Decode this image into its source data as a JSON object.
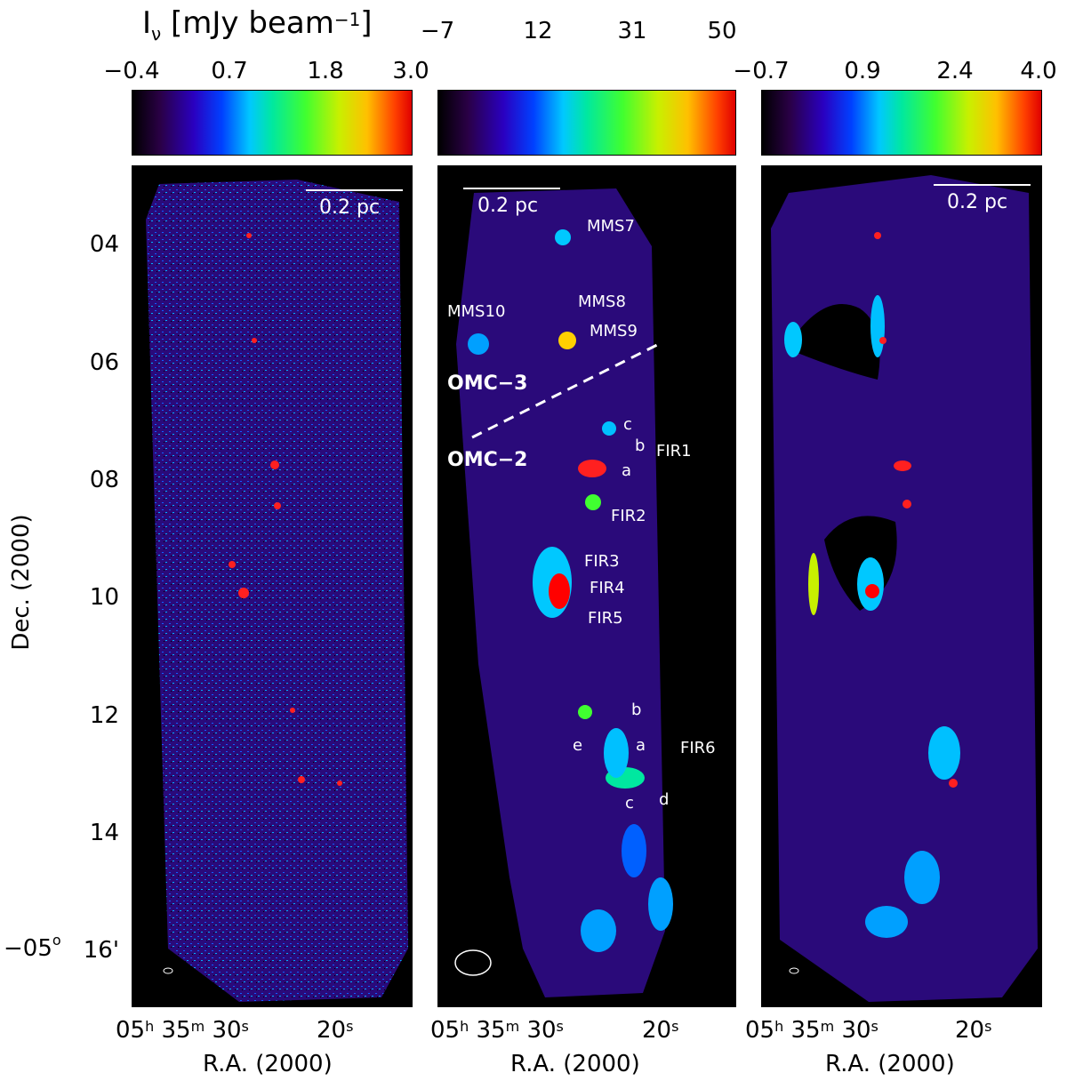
{
  "colorbar_label": "I",
  "colorbar_label_sub": "ν",
  "colorbar_label_unit": "[mJy beam",
  "colorbar_label_exp": "−1",
  "colorbar_label_close": "]",
  "colorbars": [
    {
      "ticks": [
        "−0.4",
        "0.7",
        "1.8",
        "3.0"
      ]
    },
    {
      "ticks": [
        "−7",
        "12",
        "31",
        "50"
      ]
    },
    {
      "ticks": [
        "−0.7",
        "0.9",
        "2.4",
        "4.0"
      ]
    }
  ],
  "y_axis": {
    "label": "Dec. (2000)",
    "ticks": [
      "04",
      "06",
      "08",
      "10",
      "12",
      "14",
      "16'"
    ],
    "prefix": "−05",
    "prefix_sup": "o"
  },
  "x_axis": {
    "label": "R.A. (2000)",
    "tick_h": "05",
    "tick_h_sup": "h",
    "tick_m": "35",
    "tick_m_sup": "m",
    "tick_30": "30",
    "tick_30_sup": "s",
    "tick_20": "20",
    "tick_20_sup": "s"
  },
  "scale_bar": "0.2  pc",
  "sources": {
    "mms7": "MMS7",
    "mms8": "MMS8",
    "mms9": "MMS9",
    "mms10": "MMS10",
    "omc3": "OMC−3",
    "omc2": "OMC−2",
    "c1": "c",
    "b1": "b",
    "fir1": "FIR1",
    "a1": "a",
    "fir2": "FIR2",
    "fir3": "FIR3",
    "fir4": "FIR4",
    "fir5": "FIR5",
    "b6": "b",
    "e6": "e",
    "a6": "a",
    "fir6": "FIR6",
    "c6": "c",
    "d6": "d"
  },
  "colors": {
    "background": "#000000",
    "map_base": "#2a0a7a",
    "accent": "#ff0000"
  }
}
